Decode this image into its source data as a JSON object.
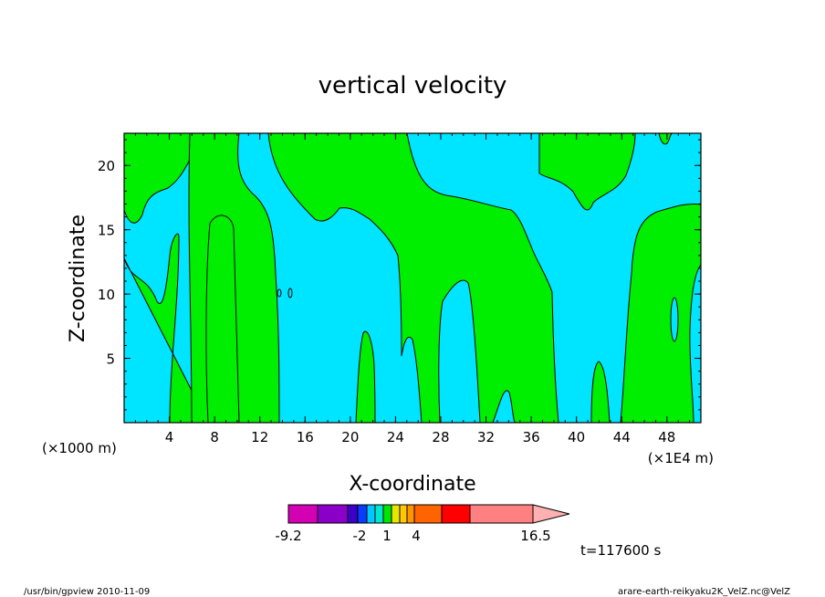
{
  "chart_data": {
    "type": "contour",
    "title": "vertical velocity",
    "xlabel": "X-coordinate",
    "ylabel": "Z-coordinate",
    "x_unit_left": "(×1000 m)",
    "x_unit_right": "(×1E4 m)",
    "x_ticks": [
      4,
      8,
      12,
      16,
      20,
      24,
      28,
      32,
      36,
      40,
      44,
      48
    ],
    "y_ticks": [
      5,
      10,
      15,
      20
    ],
    "xlim": [
      0,
      51
    ],
    "ylim": [
      0,
      22.5
    ],
    "time_label": "t=117600 s",
    "colorbar": {
      "labels": [
        "-9.2",
        "-2",
        "1",
        "4",
        "16.5"
      ],
      "colors": [
        "#d400b4",
        "#8a00c8",
        "#3b00c8",
        "#0a3cff",
        "#00c8ff",
        "#00e6d2",
        "#00e600",
        "#e6e600",
        "#ffc800",
        "#ff9600",
        "#ff6400",
        "#ff0000",
        "#ff8080",
        "#ffb0b0"
      ]
    },
    "fill_colors": {
      "low": "#00e5ff",
      "high": "#00ee00"
    }
  },
  "footer": {
    "left": "/usr/bin/gpview   2010-11-09",
    "right": "arare-earth-reikyaku2K_VelZ.nc@VelZ"
  }
}
